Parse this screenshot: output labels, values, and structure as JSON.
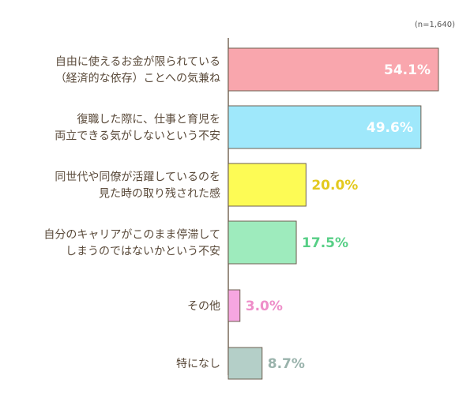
{
  "chart_data": {
    "type": "bar",
    "orientation": "horizontal",
    "note": "(n=1,640)",
    "categories": [
      [
        "自由に使えるお金が限られている",
        "（経済的な依存）ことへの気兼ね"
      ],
      [
        "復職した際に、仕事と育児を",
        "両立できる気がしないという不安"
      ],
      [
        "同世代や同僚が活躍しているのを",
        "見た時の取り残された感"
      ],
      [
        "自分のキャリアがこのまま停滞して",
        "しまうのではないかという不安"
      ],
      [
        "その他"
      ],
      [
        "特になし"
      ]
    ],
    "values": [
      54.1,
      49.6,
      20.0,
      17.5,
      3.0,
      8.7
    ],
    "value_labels": [
      "54.1%",
      "49.6%",
      "20.0%",
      "17.5%",
      "3.0%",
      "8.7%"
    ],
    "xlim": [
      0,
      60
    ],
    "colors": {
      "bars": [
        "#f9a6ad",
        "#9fe8fb",
        "#fdfb55",
        "#9eebbd",
        "#f6a6e1",
        "#b4cfc8"
      ],
      "labels": [
        "#ffffff",
        "#ffffff",
        "#e3c91e",
        "#57cf86",
        "#ee8ec9",
        "#9ab3ac"
      ],
      "axis": "#7a6a5a",
      "category_text": "#5a4a3a"
    }
  }
}
